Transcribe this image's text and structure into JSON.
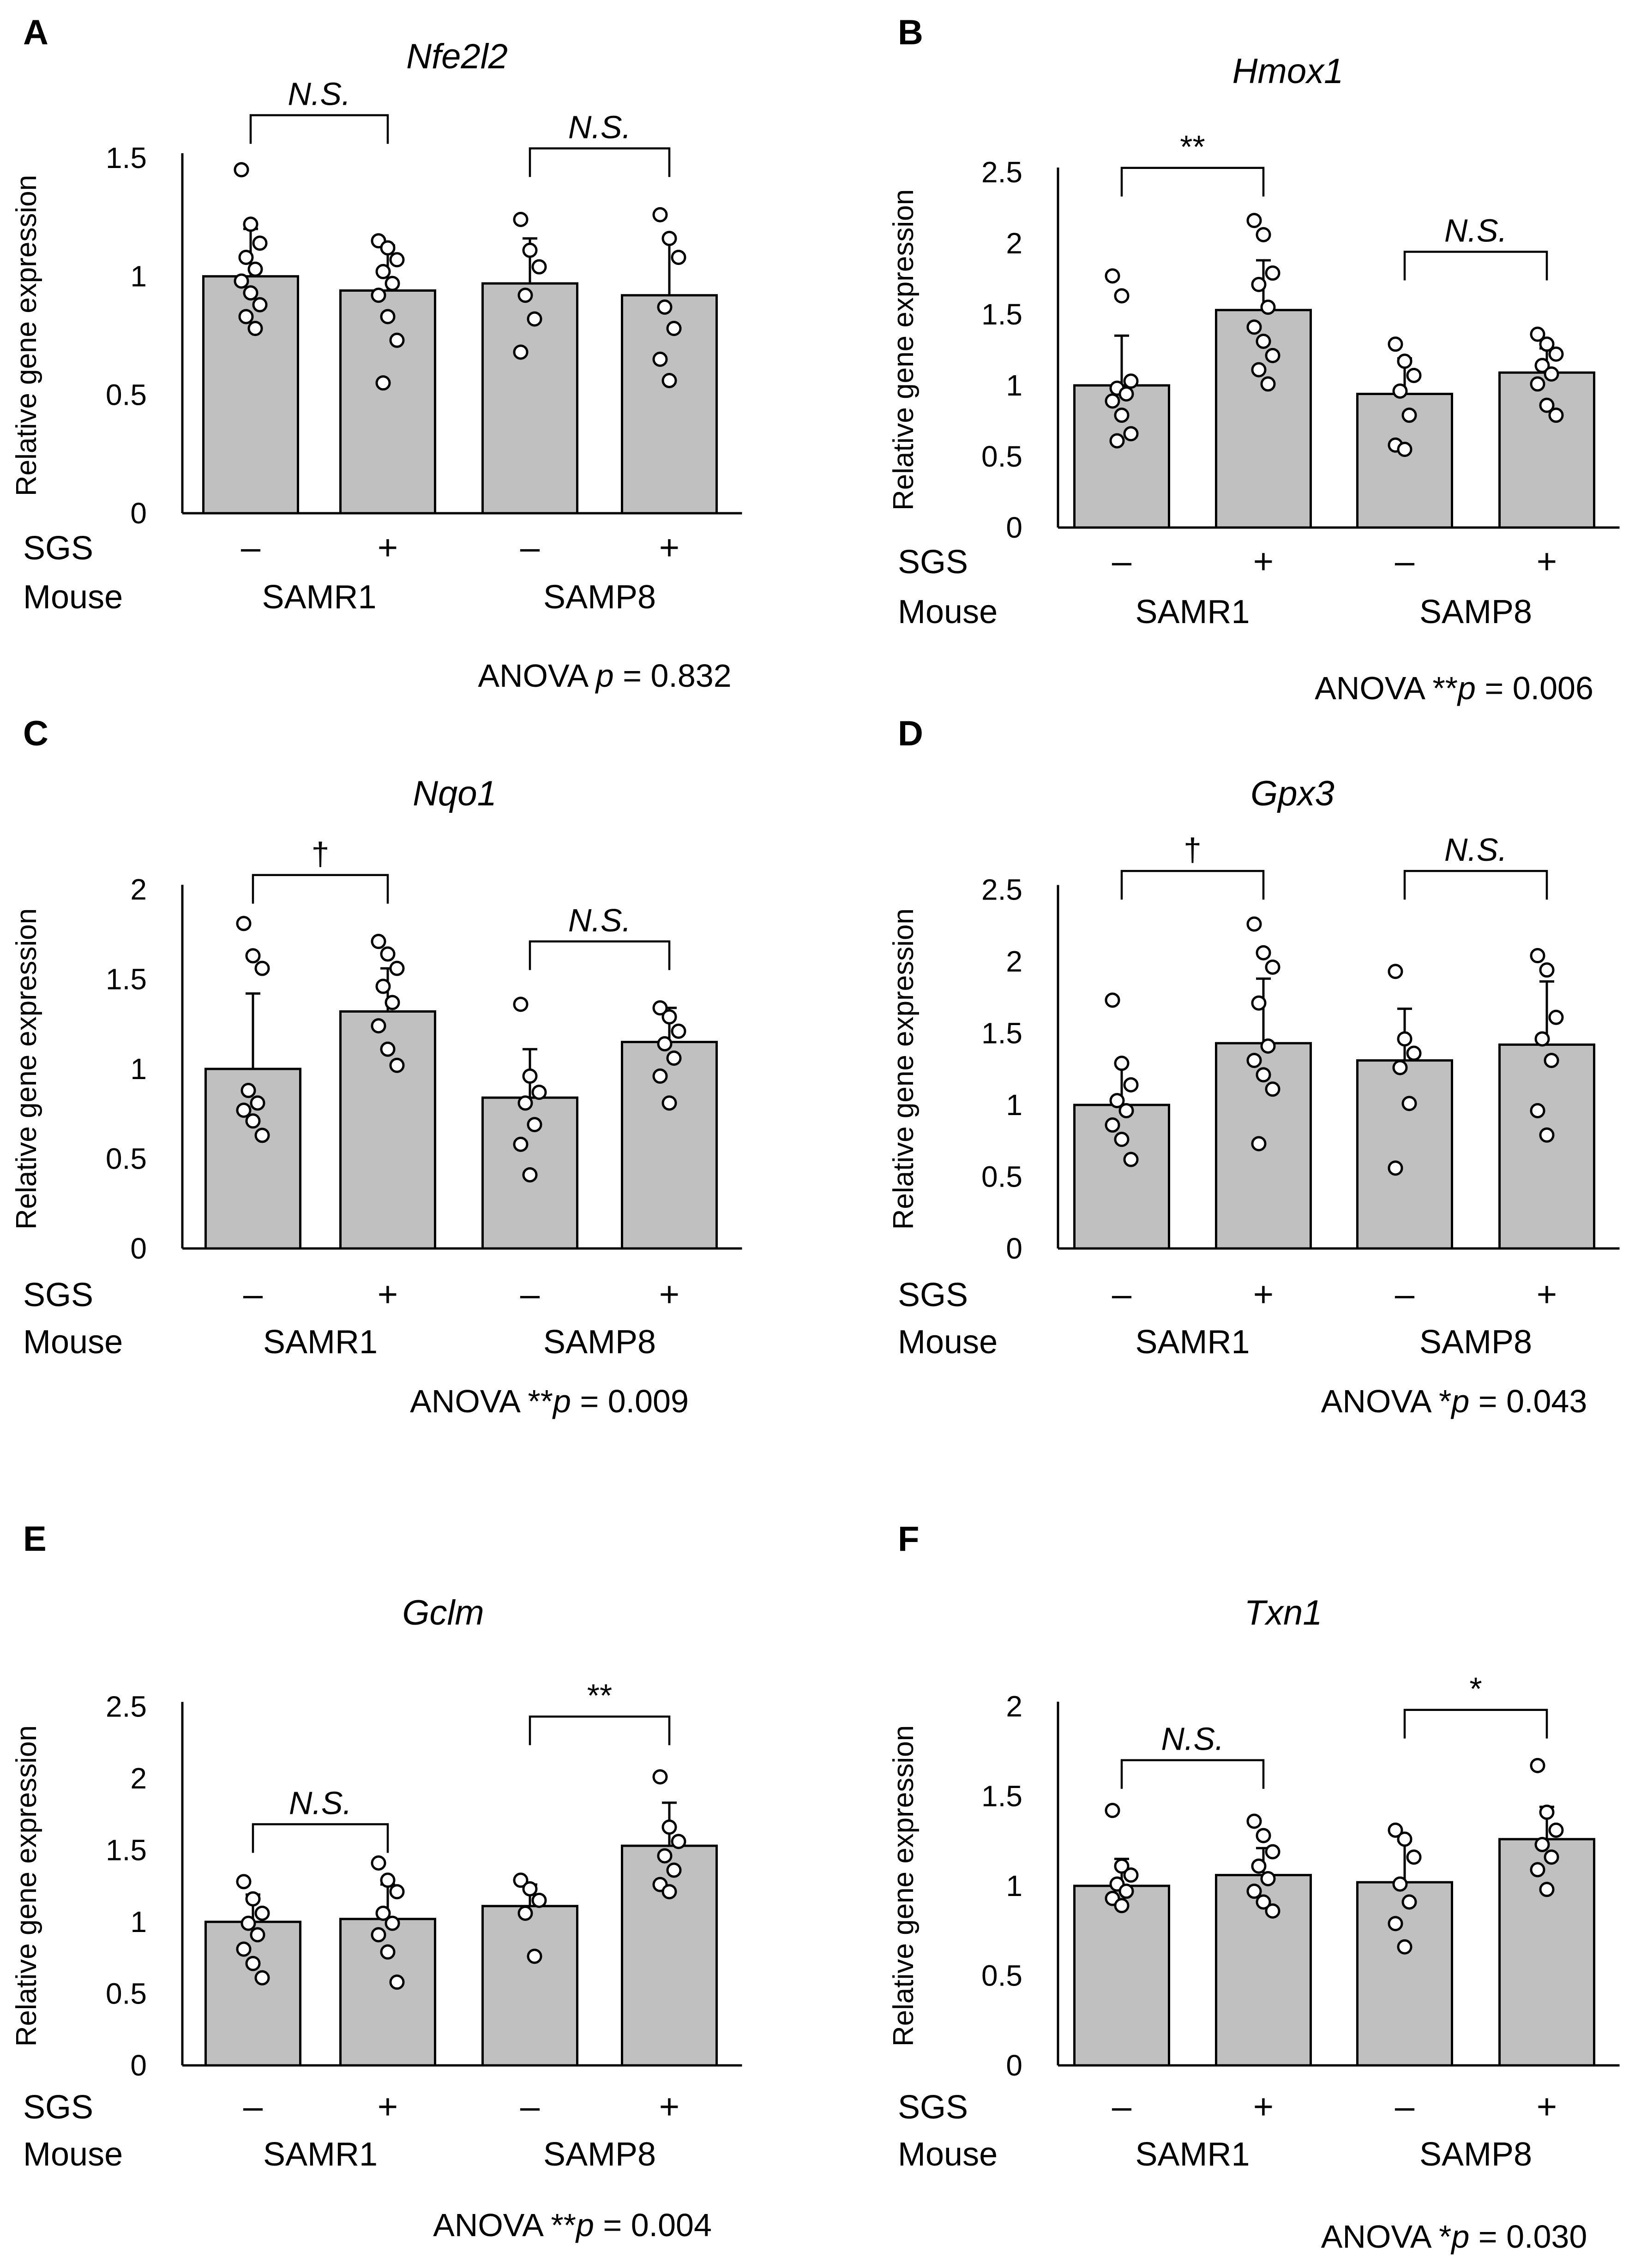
{
  "figure": {
    "row_labels": {
      "sgs": "SGS",
      "mouse": "Mouse"
    },
    "sgs_signs": [
      "–",
      "+",
      "–",
      "+"
    ],
    "groups": [
      "SAMR1",
      "SAMP8"
    ],
    "ylabel": "Relative gene expression",
    "bar_fill": "#c0c0c0"
  },
  "chart_data": [
    {
      "panel": "A",
      "type": "bar",
      "title": "Nfe2l2",
      "ylabel": "Relative gene expression",
      "ylim": [
        0,
        1.5
      ],
      "yticks": [
        "0",
        "0.5",
        "1",
        "1.5"
      ],
      "categories": [
        "SAMR1 SGS –",
        "SAMR1 SGS +",
        "SAMP8 SGS –",
        "SAMP8 SGS +"
      ],
      "values": [
        1.0,
        0.94,
        0.97,
        0.92
      ],
      "error_upper": [
        1.2,
        1.13,
        1.16,
        1.16
      ],
      "points": [
        [
          1.45,
          1.22,
          1.14,
          1.08,
          1.03,
          0.98,
          0.93,
          0.88,
          0.83,
          0.78
        ],
        [
          1.15,
          1.12,
          1.07,
          1.02,
          0.97,
          0.92,
          0.83,
          0.73,
          0.55
        ],
        [
          1.24,
          1.11,
          1.04,
          0.92,
          0.82,
          0.68
        ],
        [
          1.26,
          1.16,
          1.08,
          0.87,
          0.78,
          0.65,
          0.56
        ]
      ],
      "comparisons": [
        {
          "label": "N.S.",
          "italic": true,
          "pair": [
            0,
            1
          ],
          "bracket_y": 1.68
        },
        {
          "label": "N.S.",
          "italic": true,
          "pair": [
            2,
            3
          ],
          "bracket_y": 1.54
        }
      ],
      "anova": {
        "prefix": "ANOVA ",
        "stars": "",
        "p": "p",
        "rest": " = 0.832"
      }
    },
    {
      "panel": "B",
      "type": "bar",
      "title": "Hmox1",
      "ylabel": "Relative gene expression",
      "ylim": [
        0,
        2.5
      ],
      "yticks": [
        "0",
        "0.5",
        "1",
        "1.5",
        "2",
        "2.5"
      ],
      "categories": [
        "SAMR1 SGS –",
        "SAMR1 SGS +",
        "SAMP8 SGS –",
        "SAMP8 SGS +"
      ],
      "values": [
        1.0,
        1.53,
        0.94,
        1.09
      ],
      "error_upper": [
        1.35,
        1.88,
        1.19,
        1.26
      ],
      "points": [
        [
          1.77,
          1.63,
          1.03,
          0.98,
          0.94,
          0.89,
          0.79,
          0.66,
          0.61
        ],
        [
          2.16,
          2.06,
          1.79,
          1.71,
          1.55,
          1.41,
          1.31,
          1.21,
          1.11,
          1.01
        ],
        [
          1.29,
          1.17,
          1.07,
          0.96,
          0.79,
          0.58,
          0.55
        ],
        [
          1.36,
          1.29,
          1.22,
          1.14,
          1.08,
          1.01,
          0.86,
          0.79
        ]
      ],
      "comparisons": [
        {
          "label": "**",
          "italic": false,
          "pair": [
            0,
            1
          ],
          "bracket_y": 2.53
        },
        {
          "label": "N.S.",
          "italic": true,
          "pair": [
            2,
            3
          ],
          "bracket_y": 1.94
        }
      ],
      "anova": {
        "prefix": "ANOVA ",
        "stars": "**",
        "p": "p",
        "rest": " = 0.006"
      }
    },
    {
      "panel": "C",
      "type": "bar",
      "title": "Nqo1",
      "ylabel": "Relative gene expression",
      "ylim": [
        0,
        2
      ],
      "yticks": [
        "0",
        "0.5",
        "1",
        "1.5",
        "2"
      ],
      "categories": [
        "SAMR1 SGS –",
        "SAMR1 SGS +",
        "SAMP8 SGS –",
        "SAMP8 SGS +"
      ],
      "values": [
        1.0,
        1.32,
        0.84,
        1.15
      ],
      "error_upper": [
        1.42,
        1.56,
        1.11,
        1.34
      ],
      "points": [
        [
          1.81,
          1.63,
          1.56,
          0.88,
          0.81,
          0.77,
          0.71,
          0.63
        ],
        [
          1.71,
          1.64,
          1.56,
          1.46,
          1.37,
          1.24,
          1.11,
          1.02
        ],
        [
          1.36,
          0.96,
          0.87,
          0.81,
          0.69,
          0.58,
          0.41
        ],
        [
          1.34,
          1.29,
          1.21,
          1.14,
          1.06,
          0.96,
          0.81
        ]
      ],
      "comparisons": [
        {
          "label": "†",
          "italic": false,
          "pair": [
            0,
            1
          ],
          "bracket_y": 2.08
        },
        {
          "label": "N.S.",
          "italic": true,
          "pair": [
            2,
            3
          ],
          "bracket_y": 1.71
        }
      ],
      "anova": {
        "prefix": "ANOVA ",
        "stars": "**",
        "p": "p",
        "rest": " = 0.009"
      }
    },
    {
      "panel": "D",
      "type": "bar",
      "title": "Gpx3",
      "ylabel": "Relative gene expression",
      "ylim": [
        0,
        2.5
      ],
      "yticks": [
        "0",
        "0.5",
        "1",
        "1.5",
        "2",
        "2.5"
      ],
      "categories": [
        "SAMR1 SGS –",
        "SAMR1 SGS +",
        "SAMP8 SGS –",
        "SAMP8 SGS +"
      ],
      "values": [
        1.0,
        1.43,
        1.31,
        1.42
      ],
      "error_upper": [
        1.29,
        1.88,
        1.67,
        1.86
      ],
      "points": [
        [
          1.73,
          1.29,
          1.14,
          1.03,
          0.96,
          0.86,
          0.76,
          0.62
        ],
        [
          2.26,
          2.06,
          1.96,
          1.71,
          1.41,
          1.31,
          1.21,
          1.11,
          0.73
        ],
        [
          1.93,
          1.46,
          1.36,
          1.26,
          1.01,
          0.56
        ],
        [
          2.04,
          1.94,
          1.61,
          1.46,
          1.31,
          0.96,
          0.79
        ]
      ],
      "comparisons": [
        {
          "label": "†",
          "italic": false,
          "pair": [
            0,
            1
          ],
          "bracket_y": 2.63
        },
        {
          "label": "N.S.",
          "italic": true,
          "pair": [
            2,
            3
          ],
          "bracket_y": 2.63
        }
      ],
      "anova": {
        "prefix": "ANOVA ",
        "stars": "*",
        "p": "p",
        "rest": " = 0.043"
      }
    },
    {
      "panel": "E",
      "type": "bar",
      "title": "Gclm",
      "ylabel": "Relative gene expression",
      "ylim": [
        0,
        2.5
      ],
      "yticks": [
        "0",
        "0.5",
        "1",
        "1.5",
        "2",
        "2.5"
      ],
      "categories": [
        "SAMR1 SGS –",
        "SAMR1 SGS +",
        "SAMP8 SGS –",
        "SAMP8 SGS +"
      ],
      "values": [
        1.0,
        1.02,
        1.11,
        1.53
      ],
      "error_upper": [
        1.19,
        1.26,
        1.26,
        1.83
      ],
      "points": [
        [
          1.28,
          1.16,
          1.06,
          0.99,
          0.91,
          0.81,
          0.71,
          0.61
        ],
        [
          1.41,
          1.29,
          1.21,
          1.06,
          0.99,
          0.91,
          0.79,
          0.58
        ],
        [
          1.29,
          1.23,
          1.15,
          1.06,
          0.76
        ],
        [
          2.01,
          1.66,
          1.56,
          1.46,
          1.36,
          1.26,
          1.21
        ]
      ],
      "comparisons": [
        {
          "label": "N.S.",
          "italic": true,
          "pair": [
            0,
            1
          ],
          "bracket_y": 1.68
        },
        {
          "label": "**",
          "italic": false,
          "pair": [
            2,
            3
          ],
          "bracket_y": 2.43
        }
      ],
      "anova": {
        "prefix": "ANOVA ",
        "stars": "**",
        "p": "p",
        "rest": " = 0.004"
      }
    },
    {
      "panel": "F",
      "type": "bar",
      "title": "Txn1",
      "ylabel": "Relative gene expression",
      "ylim": [
        0,
        2
      ],
      "yticks": [
        "0",
        "0.5",
        "1",
        "1.5",
        "2"
      ],
      "categories": [
        "SAMR1 SGS –",
        "SAMR1 SGS +",
        "SAMP8 SGS –",
        "SAMP8 SGS +"
      ],
      "values": [
        1.0,
        1.06,
        1.02,
        1.26
      ],
      "error_upper": [
        1.15,
        1.21,
        1.25,
        1.44
      ],
      "points": [
        [
          1.42,
          1.11,
          1.06,
          1.01,
          0.97,
          0.93,
          0.89
        ],
        [
          1.36,
          1.28,
          1.19,
          1.11,
          1.04,
          0.97,
          0.91,
          0.86
        ],
        [
          1.31,
          1.26,
          1.16,
          1.01,
          0.91,
          0.79,
          0.66
        ],
        [
          1.67,
          1.41,
          1.31,
          1.23,
          1.16,
          1.09,
          0.98
        ]
      ],
      "comparisons": [
        {
          "label": "N.S.",
          "italic": true,
          "pair": [
            0,
            1
          ],
          "bracket_y": 1.7
        },
        {
          "label": "*",
          "italic": false,
          "pair": [
            2,
            3
          ],
          "bracket_y": 1.98
        }
      ],
      "anova": {
        "prefix": "ANOVA ",
        "stars": "*",
        "p": "p",
        "rest": " = 0.030"
      }
    }
  ]
}
